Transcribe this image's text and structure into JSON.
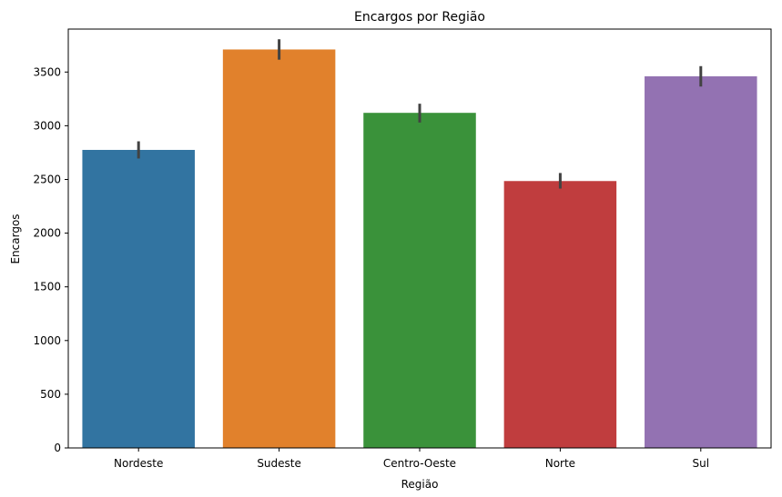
{
  "chart_data": {
    "type": "bar",
    "title": "Encargos por Região",
    "xlabel": "Região",
    "ylabel": "Encargos",
    "categories": [
      "Nordeste",
      "Sudeste",
      "Centro-Oeste",
      "Norte",
      "Sul"
    ],
    "values": [
      2775,
      3710,
      3120,
      2485,
      3460
    ],
    "error_low": [
      2695,
      3615,
      3030,
      2415,
      3365
    ],
    "error_high": [
      2855,
      3805,
      3205,
      2560,
      3555
    ],
    "colors": [
      "#3274a1",
      "#e1812c",
      "#3a923a",
      "#c03d3e",
      "#9372b2"
    ],
    "ylim": [
      0,
      3900
    ],
    "yticks": [
      0,
      500,
      1000,
      1500,
      2000,
      2500,
      3000,
      3500
    ],
    "grid": false,
    "legend": "none"
  }
}
